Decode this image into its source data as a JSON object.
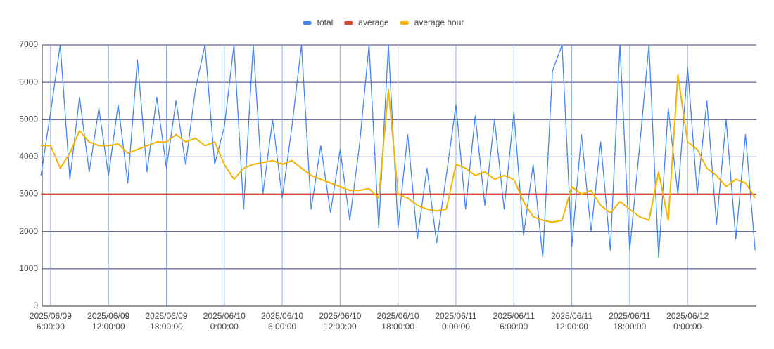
{
  "chart_data": {
    "type": "line",
    "x": [
      "2025/06/09 5:00:00",
      "2025/06/09 6:00:00",
      "2025/06/09 7:00:00",
      "2025/06/09 8:00:00",
      "2025/06/09 9:00:00",
      "2025/06/09 10:00:00",
      "2025/06/09 11:00:00",
      "2025/06/09 12:00:00",
      "2025/06/09 13:00:00",
      "2025/06/09 14:00:00",
      "2025/06/09 15:00:00",
      "2025/06/09 16:00:00",
      "2025/06/09 17:00:00",
      "2025/06/09 18:00:00",
      "2025/06/09 19:00:00",
      "2025/06/09 20:00:00",
      "2025/06/09 21:00:00",
      "2025/06/09 22:00:00",
      "2025/06/09 23:00:00",
      "2025/06/10 0:00:00",
      "2025/06/10 1:00:00",
      "2025/06/10 2:00:00",
      "2025/06/10 3:00:00",
      "2025/06/10 4:00:00",
      "2025/06/10 5:00:00",
      "2025/06/10 6:00:00",
      "2025/06/10 7:00:00",
      "2025/06/10 8:00:00",
      "2025/06/10 9:00:00",
      "2025/06/10 10:00:00",
      "2025/06/10 11:00:00",
      "2025/06/10 12:00:00",
      "2025/06/10 13:00:00",
      "2025/06/10 14:00:00",
      "2025/06/10 15:00:00",
      "2025/06/10 16:00:00",
      "2025/06/10 17:00:00",
      "2025/06/10 18:00:00",
      "2025/06/10 19:00:00",
      "2025/06/10 20:00:00",
      "2025/06/10 21:00:00",
      "2025/06/10 22:00:00",
      "2025/06/10 23:00:00",
      "2025/06/11 0:00:00",
      "2025/06/11 1:00:00",
      "2025/06/11 2:00:00",
      "2025/06/11 3:00:00",
      "2025/06/11 4:00:00",
      "2025/06/11 5:00:00",
      "2025/06/11 6:00:00",
      "2025/06/11 7:00:00",
      "2025/06/11 8:00:00",
      "2025/06/11 9:00:00",
      "2025/06/11 10:00:00",
      "2025/06/11 11:00:00",
      "2025/06/11 12:00:00",
      "2025/06/11 13:00:00",
      "2025/06/11 14:00:00",
      "2025/06/11 15:00:00",
      "2025/06/11 16:00:00",
      "2025/06/11 17:00:00",
      "2025/06/11 18:00:00",
      "2025/06/11 19:00:00",
      "2025/06/11 20:00:00",
      "2025/06/11 21:00:00",
      "2025/06/11 22:00:00",
      "2025/06/11 23:00:00",
      "2025/06/12 0:00:00",
      "2025/06/12 1:00:00",
      "2025/06/12 2:00:00",
      "2025/06/12 3:00:00",
      "2025/06/12 4:00:00",
      "2025/06/12 5:00:00",
      "2025/06/12 6:00:00",
      "2025/06/12 7:00:00"
    ],
    "series": [
      {
        "name": "total",
        "color": "#4285f4",
        "values": [
          3500,
          5200,
          7000,
          3400,
          5600,
          3600,
          5300,
          3500,
          5400,
          3300,
          6600,
          3600,
          5600,
          3700,
          5500,
          3800,
          5800,
          7000,
          3800,
          4800,
          7000,
          2600,
          7000,
          3000,
          5000,
          2900,
          4800,
          7000,
          2600,
          4300,
          2500,
          4200,
          2300,
          4300,
          7000,
          2100,
          7000,
          2100,
          4600,
          1800,
          3700,
          1700,
          3500,
          5400,
          2600,
          5100,
          2700,
          5000,
          2600,
          5200,
          1900,
          3800,
          1300,
          6300,
          7000,
          1600,
          4600,
          2000,
          4400,
          1500,
          7000,
          1500,
          4200,
          7000,
          1300,
          5300,
          3000,
          6400,
          3000,
          5500,
          2200,
          5000,
          1800,
          4600,
          1500
        ]
      },
      {
        "name": "average",
        "color": "#db4437",
        "values": [
          3000,
          3000,
          3000,
          3000,
          3000,
          3000,
          3000,
          3000,
          3000,
          3000,
          3000,
          3000,
          3000,
          3000,
          3000,
          3000,
          3000,
          3000,
          3000,
          3000,
          3000,
          3000,
          3000,
          3000,
          3000,
          3000,
          3000,
          3000,
          3000,
          3000,
          3000,
          3000,
          3000,
          3000,
          3000,
          3000,
          3000,
          3000,
          3000,
          3000,
          3000,
          3000,
          3000,
          3000,
          3000,
          3000,
          3000,
          3000,
          3000,
          3000,
          3000,
          3000,
          3000,
          3000,
          3000,
          3000,
          3000,
          3000,
          3000,
          3000,
          3000,
          3000,
          3000,
          3000,
          3000,
          3000,
          3000,
          3000,
          3000,
          3000,
          3000,
          3000,
          3000,
          3000,
          3000
        ]
      },
      {
        "name": "average hour",
        "color": "#f4b400",
        "values": [
          4300,
          4300,
          3700,
          4100,
          4700,
          4400,
          4300,
          4300,
          4350,
          4100,
          4200,
          4300,
          4400,
          4400,
          4600,
          4400,
          4500,
          4300,
          4400,
          3800,
          3400,
          3700,
          3800,
          3850,
          3900,
          3800,
          3900,
          3700,
          3500,
          3400,
          3300,
          3200,
          3100,
          3100,
          3150,
          2900,
          5800,
          3000,
          2900,
          2700,
          2600,
          2550,
          2600,
          3800,
          3700,
          3500,
          3600,
          3400,
          3500,
          3400,
          2800,
          2400,
          2300,
          2250,
          2300,
          3200,
          3000,
          3100,
          2700,
          2500,
          2800,
          2600,
          2400,
          2300,
          3600,
          2300,
          6200,
          4400,
          4200,
          3700,
          3500,
          3200,
          3400,
          3300,
          2900
        ]
      }
    ],
    "xlim": [
      "2025/06/09 5:08:00",
      "2025/06/12 7:08:00"
    ],
    "xticks": [
      "2025/06/09 6:00:00",
      "2025/06/09 12:00:00",
      "2025/06/09 18:00:00",
      "2025/06/10 0:00:00",
      "2025/06/10 6:00:00",
      "2025/06/10 12:00:00",
      "2025/06/10 18:00:00",
      "2025/06/11 0:00:00",
      "2025/06/11 6:00:00",
      "2025/06/11 12:00:00",
      "2025/06/11 18:00:00",
      "2025/06/12 0:00:00"
    ],
    "ylim": [
      0,
      7000
    ],
    "yticks": [
      0,
      1000,
      2000,
      3000,
      4000,
      5000,
      6000,
      7000
    ],
    "grid": true,
    "legend": "top"
  }
}
